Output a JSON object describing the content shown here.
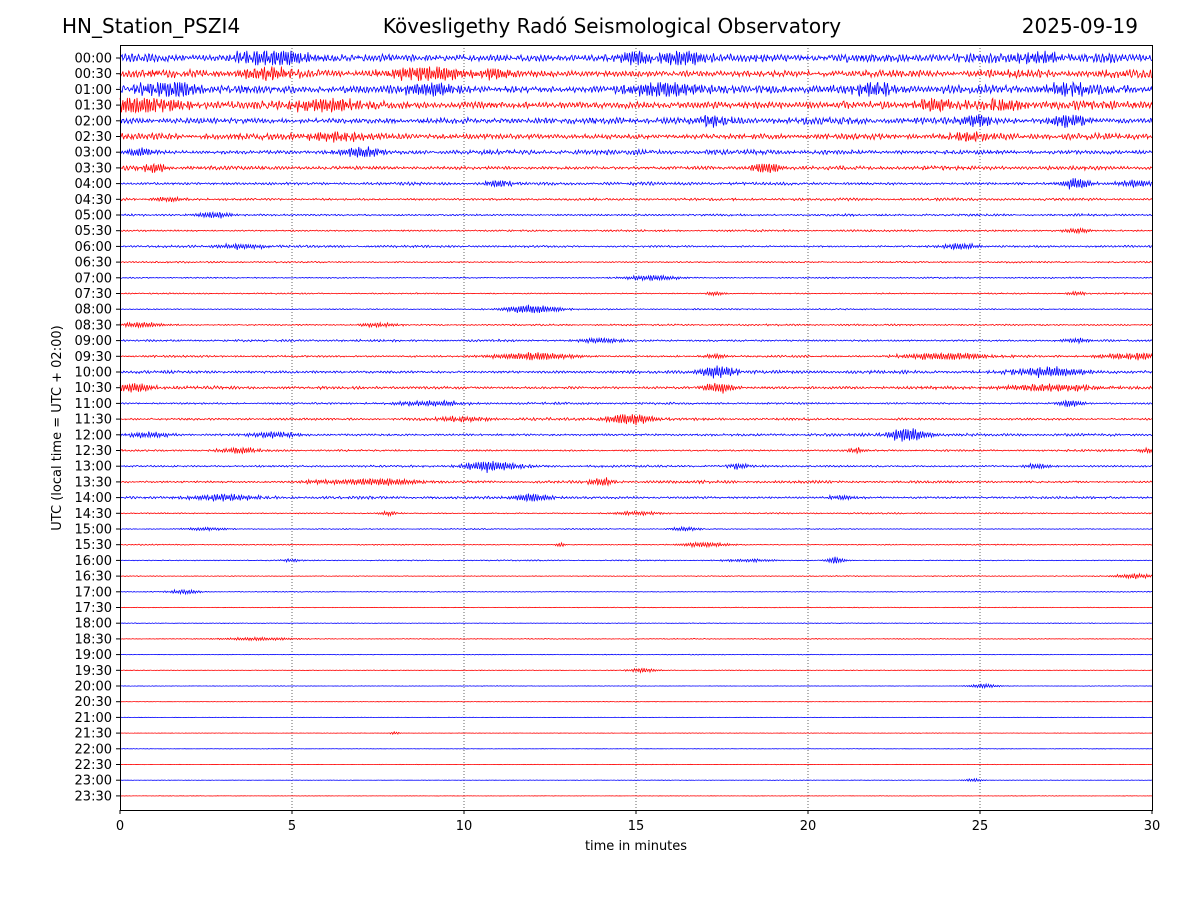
{
  "header": {
    "station": "HN_Station_PSZI4",
    "observatory": "Kövesligethy Radó Seismological Observatory",
    "date": "2025-09-19"
  },
  "chart_data": {
    "type": "line",
    "subtype": "helicorder",
    "xlabel": "time in minutes",
    "ylabel": "UTC (local time = UTC + 02:00)",
    "xlim": [
      0,
      30
    ],
    "xticks": [
      0,
      5,
      10,
      15,
      20,
      25,
      30
    ],
    "grid": "vertical dotted at 5 minute intervals",
    "row_colors": [
      "#0000ff",
      "#ff0000"
    ],
    "rows": [
      {
        "label": "00:00",
        "noise": 1.0,
        "events": [
          [
            4.5,
            1.6,
            0.8
          ],
          [
            15.0,
            1.5,
            0.4
          ],
          [
            16.3,
            1.7,
            0.5
          ],
          [
            26.8,
            1.2,
            0.4
          ]
        ]
      },
      {
        "label": "00:30",
        "noise": 0.9,
        "events": [
          [
            4.2,
            1.2,
            0.6
          ],
          [
            9.0,
            1.4,
            0.8
          ],
          [
            11.0,
            1.0,
            0.3
          ]
        ]
      },
      {
        "label": "01:00",
        "noise": 1.0,
        "events": [
          [
            1.5,
            1.5,
            0.6
          ],
          [
            9.0,
            1.3,
            0.6
          ],
          [
            15.8,
            1.6,
            0.7
          ],
          [
            22.0,
            1.4,
            0.4
          ],
          [
            27.5,
            1.1,
            0.5
          ]
        ]
      },
      {
        "label": "01:30",
        "noise": 1.0,
        "events": [
          [
            0.5,
            1.6,
            1.0
          ],
          [
            6.0,
            1.3,
            0.8
          ],
          [
            23.6,
            1.1,
            0.4
          ],
          [
            25.8,
            1.0,
            0.4
          ]
        ]
      },
      {
        "label": "02:00",
        "noise": 0.8,
        "events": [
          [
            17.2,
            1.0,
            0.3
          ],
          [
            24.9,
            1.2,
            0.3
          ],
          [
            27.6,
            1.3,
            0.4
          ]
        ]
      },
      {
        "label": "02:30",
        "noise": 0.75,
        "events": [
          [
            6.3,
            0.9,
            0.7
          ],
          [
            24.6,
            0.9,
            0.4
          ]
        ]
      },
      {
        "label": "03:00",
        "noise": 0.55,
        "events": [
          [
            7.0,
            0.9,
            0.5
          ],
          [
            0.6,
            0.8,
            0.3
          ]
        ]
      },
      {
        "label": "03:30",
        "noise": 0.45,
        "events": [
          [
            1.0,
            0.8,
            0.3
          ],
          [
            18.8,
            1.1,
            0.3
          ]
        ]
      },
      {
        "label": "04:00",
        "noise": 0.35,
        "events": [
          [
            11.0,
            0.7,
            0.3
          ],
          [
            27.8,
            1.1,
            0.3
          ],
          [
            29.5,
            0.7,
            0.4
          ]
        ]
      },
      {
        "label": "04:30",
        "noise": 0.3,
        "events": [
          [
            1.4,
            0.5,
            0.3
          ]
        ]
      },
      {
        "label": "05:00",
        "noise": 0.25,
        "events": [
          [
            2.7,
            0.6,
            0.4
          ]
        ]
      },
      {
        "label": "05:30",
        "noise": 0.22,
        "events": [
          [
            27.8,
            0.5,
            0.3
          ]
        ]
      },
      {
        "label": "06:00",
        "noise": 0.25,
        "events": [
          [
            3.5,
            0.5,
            0.6
          ],
          [
            24.4,
            0.6,
            0.4
          ]
        ]
      },
      {
        "label": "06:30",
        "noise": 0.18,
        "events": []
      },
      {
        "label": "07:00",
        "noise": 0.15,
        "events": [
          [
            15.5,
            0.5,
            0.6
          ]
        ]
      },
      {
        "label": "07:30",
        "noise": 0.15,
        "events": [
          [
            17.3,
            0.4,
            0.2
          ],
          [
            27.8,
            0.4,
            0.2
          ]
        ]
      },
      {
        "label": "08:00",
        "noise": 0.15,
        "events": [
          [
            12.0,
            0.8,
            0.6
          ]
        ]
      },
      {
        "label": "08:30",
        "noise": 0.2,
        "events": [
          [
            0.6,
            0.5,
            0.5
          ],
          [
            7.5,
            0.4,
            0.4
          ]
        ]
      },
      {
        "label": "09:00",
        "noise": 0.25,
        "events": [
          [
            14.0,
            0.5,
            0.5
          ],
          [
            27.8,
            0.5,
            0.3
          ]
        ]
      },
      {
        "label": "09:30",
        "noise": 0.25,
        "events": [
          [
            12.0,
            0.7,
            0.9
          ],
          [
            17.3,
            0.4,
            0.3
          ],
          [
            24.0,
            0.7,
            0.9
          ],
          [
            29.5,
            0.6,
            0.8
          ]
        ]
      },
      {
        "label": "10:00",
        "noise": 0.35,
        "events": [
          [
            17.4,
            1.2,
            0.4
          ],
          [
            27.0,
            1.0,
            0.7
          ]
        ]
      },
      {
        "label": "10:30",
        "noise": 0.35,
        "events": [
          [
            0.4,
            0.9,
            0.4
          ],
          [
            17.4,
            1.1,
            0.3
          ],
          [
            27.0,
            0.6,
            1.2
          ]
        ]
      },
      {
        "label": "11:00",
        "noise": 0.25,
        "events": [
          [
            9.0,
            0.5,
            0.8
          ],
          [
            27.6,
            0.6,
            0.3
          ]
        ]
      },
      {
        "label": "11:30",
        "noise": 0.3,
        "events": [
          [
            14.8,
            1.1,
            0.5
          ],
          [
            10.0,
            0.5,
            0.6
          ]
        ]
      },
      {
        "label": "12:00",
        "noise": 0.3,
        "events": [
          [
            0.8,
            0.5,
            0.5
          ],
          [
            4.5,
            0.6,
            0.5
          ],
          [
            22.9,
            1.4,
            0.4
          ]
        ]
      },
      {
        "label": "12:30",
        "noise": 0.22,
        "events": [
          [
            3.5,
            0.5,
            0.5
          ],
          [
            21.4,
            0.5,
            0.2
          ],
          [
            29.9,
            0.5,
            0.2
          ]
        ]
      },
      {
        "label": "13:00",
        "noise": 0.25,
        "events": [
          [
            10.8,
            1.0,
            0.6
          ],
          [
            18.0,
            0.6,
            0.2
          ],
          [
            26.7,
            0.5,
            0.3
          ]
        ]
      },
      {
        "label": "13:30",
        "noise": 0.3,
        "events": [
          [
            7.5,
            0.7,
            0.9
          ],
          [
            14.0,
            0.7,
            0.3
          ],
          [
            6.0,
            0.4,
            0.6
          ]
        ]
      },
      {
        "label": "14:00",
        "noise": 0.3,
        "events": [
          [
            3.0,
            0.6,
            0.8
          ],
          [
            12.0,
            0.8,
            0.4
          ],
          [
            21.0,
            0.5,
            0.3
          ]
        ]
      },
      {
        "label": "14:30",
        "noise": 0.15,
        "events": [
          [
            15.0,
            0.4,
            0.5
          ],
          [
            7.8,
            0.4,
            0.2
          ]
        ]
      },
      {
        "label": "15:00",
        "noise": 0.12,
        "events": [
          [
            16.4,
            0.4,
            0.3
          ],
          [
            2.5,
            0.3,
            0.5
          ]
        ]
      },
      {
        "label": "15:30",
        "noise": 0.12,
        "events": [
          [
            17.0,
            0.5,
            0.5
          ],
          [
            12.8,
            0.4,
            0.1
          ]
        ]
      },
      {
        "label": "16:00",
        "noise": 0.12,
        "events": [
          [
            20.8,
            0.6,
            0.2
          ],
          [
            5.0,
            0.3,
            0.2
          ],
          [
            18.3,
            0.3,
            0.6
          ]
        ]
      },
      {
        "label": "16:30",
        "noise": 0.1,
        "events": [
          [
            29.5,
            0.5,
            0.4
          ]
        ]
      },
      {
        "label": "17:00",
        "noise": 0.1,
        "events": [
          [
            1.9,
            0.5,
            0.3
          ]
        ]
      },
      {
        "label": "17:30",
        "noise": 0.08,
        "events": []
      },
      {
        "label": "18:00",
        "noise": 0.08,
        "events": []
      },
      {
        "label": "18:30",
        "noise": 0.1,
        "events": [
          [
            4.0,
            0.3,
            0.8
          ]
        ]
      },
      {
        "label": "19:00",
        "noise": 0.08,
        "events": []
      },
      {
        "label": "19:30",
        "noise": 0.08,
        "events": [
          [
            15.2,
            0.4,
            0.3
          ]
        ]
      },
      {
        "label": "20:00",
        "noise": 0.06,
        "events": [
          [
            25.1,
            0.4,
            0.3
          ]
        ]
      },
      {
        "label": "20:30",
        "noise": 0.05,
        "events": []
      },
      {
        "label": "21:00",
        "noise": 0.05,
        "events": []
      },
      {
        "label": "21:30",
        "noise": 0.05,
        "events": [
          [
            8.0,
            0.3,
            0.1
          ]
        ]
      },
      {
        "label": "22:00",
        "noise": 0.05,
        "events": []
      },
      {
        "label": "22:30",
        "noise": 0.05,
        "events": []
      },
      {
        "label": "23:00",
        "noise": 0.05,
        "events": [
          [
            24.8,
            0.3,
            0.2
          ]
        ]
      },
      {
        "label": "23:30",
        "noise": 0.05,
        "events": []
      }
    ]
  }
}
